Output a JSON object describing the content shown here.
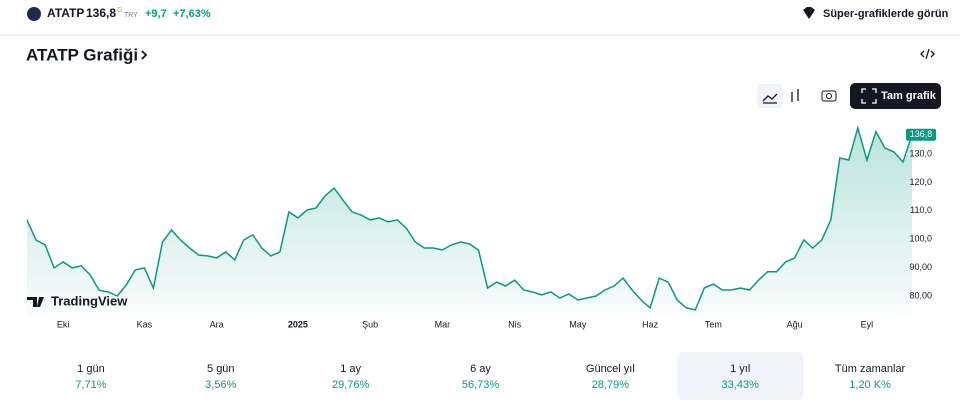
{
  "header": {
    "symbol": "ATATP",
    "price": "136,8",
    "price_flag": "G",
    "currency": "TRY",
    "change": "+9,7",
    "change_pct": "+7,63%",
    "super_link": "Süper-grafiklerde görün"
  },
  "title": "ATATP Grafiği",
  "full_chart": "Tam grafik",
  "watermark": "TradingView",
  "chart_data": {
    "type": "area",
    "color": "#089981",
    "values": [
      106.8,
      99.7,
      98,
      89.9,
      92,
      89.9,
      90.6,
      87.4,
      82,
      81.4,
      80,
      83.9,
      89.2,
      89.9,
      82.8,
      99,
      103.2,
      99.7,
      96.9,
      94.4,
      94.1,
      93.4,
      95.5,
      92.7,
      99.7,
      101.5,
      96.9,
      94.1,
      95.5,
      109.6,
      107.5,
      110.3,
      111,
      115.2,
      118,
      113.7,
      109.6,
      108.5,
      106.8,
      107.5,
      106.1,
      106.8,
      103.9,
      99,
      96.9,
      96.9,
      96.2,
      98,
      99,
      98.3,
      96.2,
      82.8,
      84.9,
      83.5,
      85.6,
      82.1,
      81.4,
      80.4,
      81.4,
      79.3,
      80.7,
      78.6,
      79.3,
      80,
      82.1,
      83.5,
      86.3,
      82.1,
      78.6,
      75.8,
      86.3,
      84.9,
      78.6,
      75.8,
      75.1,
      82.8,
      84.2,
      82.1,
      82.1,
      82.8,
      82.1,
      85.6,
      88.5,
      88.5,
      92,
      93.4,
      99.7,
      96.9,
      99.7,
      106.8,
      128.6,
      127.9,
      139.2,
      127.9,
      137.9,
      132.1,
      130.7,
      127.2,
      136.8
    ],
    "last_label": "136,8",
    "xlim": [
      0,
      97
    ],
    "xticks": [
      {
        "value": 4,
        "label": "Eki"
      },
      {
        "value": 13,
        "label": "Kas"
      },
      {
        "value": 21,
        "label": "Ara"
      },
      {
        "value": 30,
        "label": "2025"
      },
      {
        "value": 38,
        "label": "Şub"
      },
      {
        "value": 46,
        "label": "Mar"
      },
      {
        "value": 54,
        "label": "Nis"
      },
      {
        "value": 61,
        "label": "May"
      },
      {
        "value": 69,
        "label": "Haz"
      },
      {
        "value": 76,
        "label": "Tem"
      },
      {
        "value": 85,
        "label": "Ağu"
      },
      {
        "value": 93,
        "label": "Eyl"
      }
    ],
    "ylim": [
      73.3,
      144.8
    ],
    "yticks": [
      {
        "value": 80,
        "label": "80,00"
      },
      {
        "value": 90,
        "label": "90,00"
      },
      {
        "value": 100,
        "label": "100,0"
      },
      {
        "value": 110,
        "label": "110,0"
      },
      {
        "value": 120,
        "label": "120,0"
      },
      {
        "value": 130,
        "label": "130,0"
      }
    ]
  },
  "periods": [
    {
      "name": "1 gün",
      "change": "7,71%"
    },
    {
      "name": "5 gün",
      "change": "3,56%"
    },
    {
      "name": "1 ay",
      "change": "29,76%"
    },
    {
      "name": "6 ay",
      "change": "56,73%"
    },
    {
      "name": "Güncel yıl",
      "change": "28,79%"
    },
    {
      "name": "1 yıl",
      "change": "33,43%",
      "selected": true
    },
    {
      "name": "Tüm zamanlar",
      "change": "1,20 K%"
    }
  ]
}
